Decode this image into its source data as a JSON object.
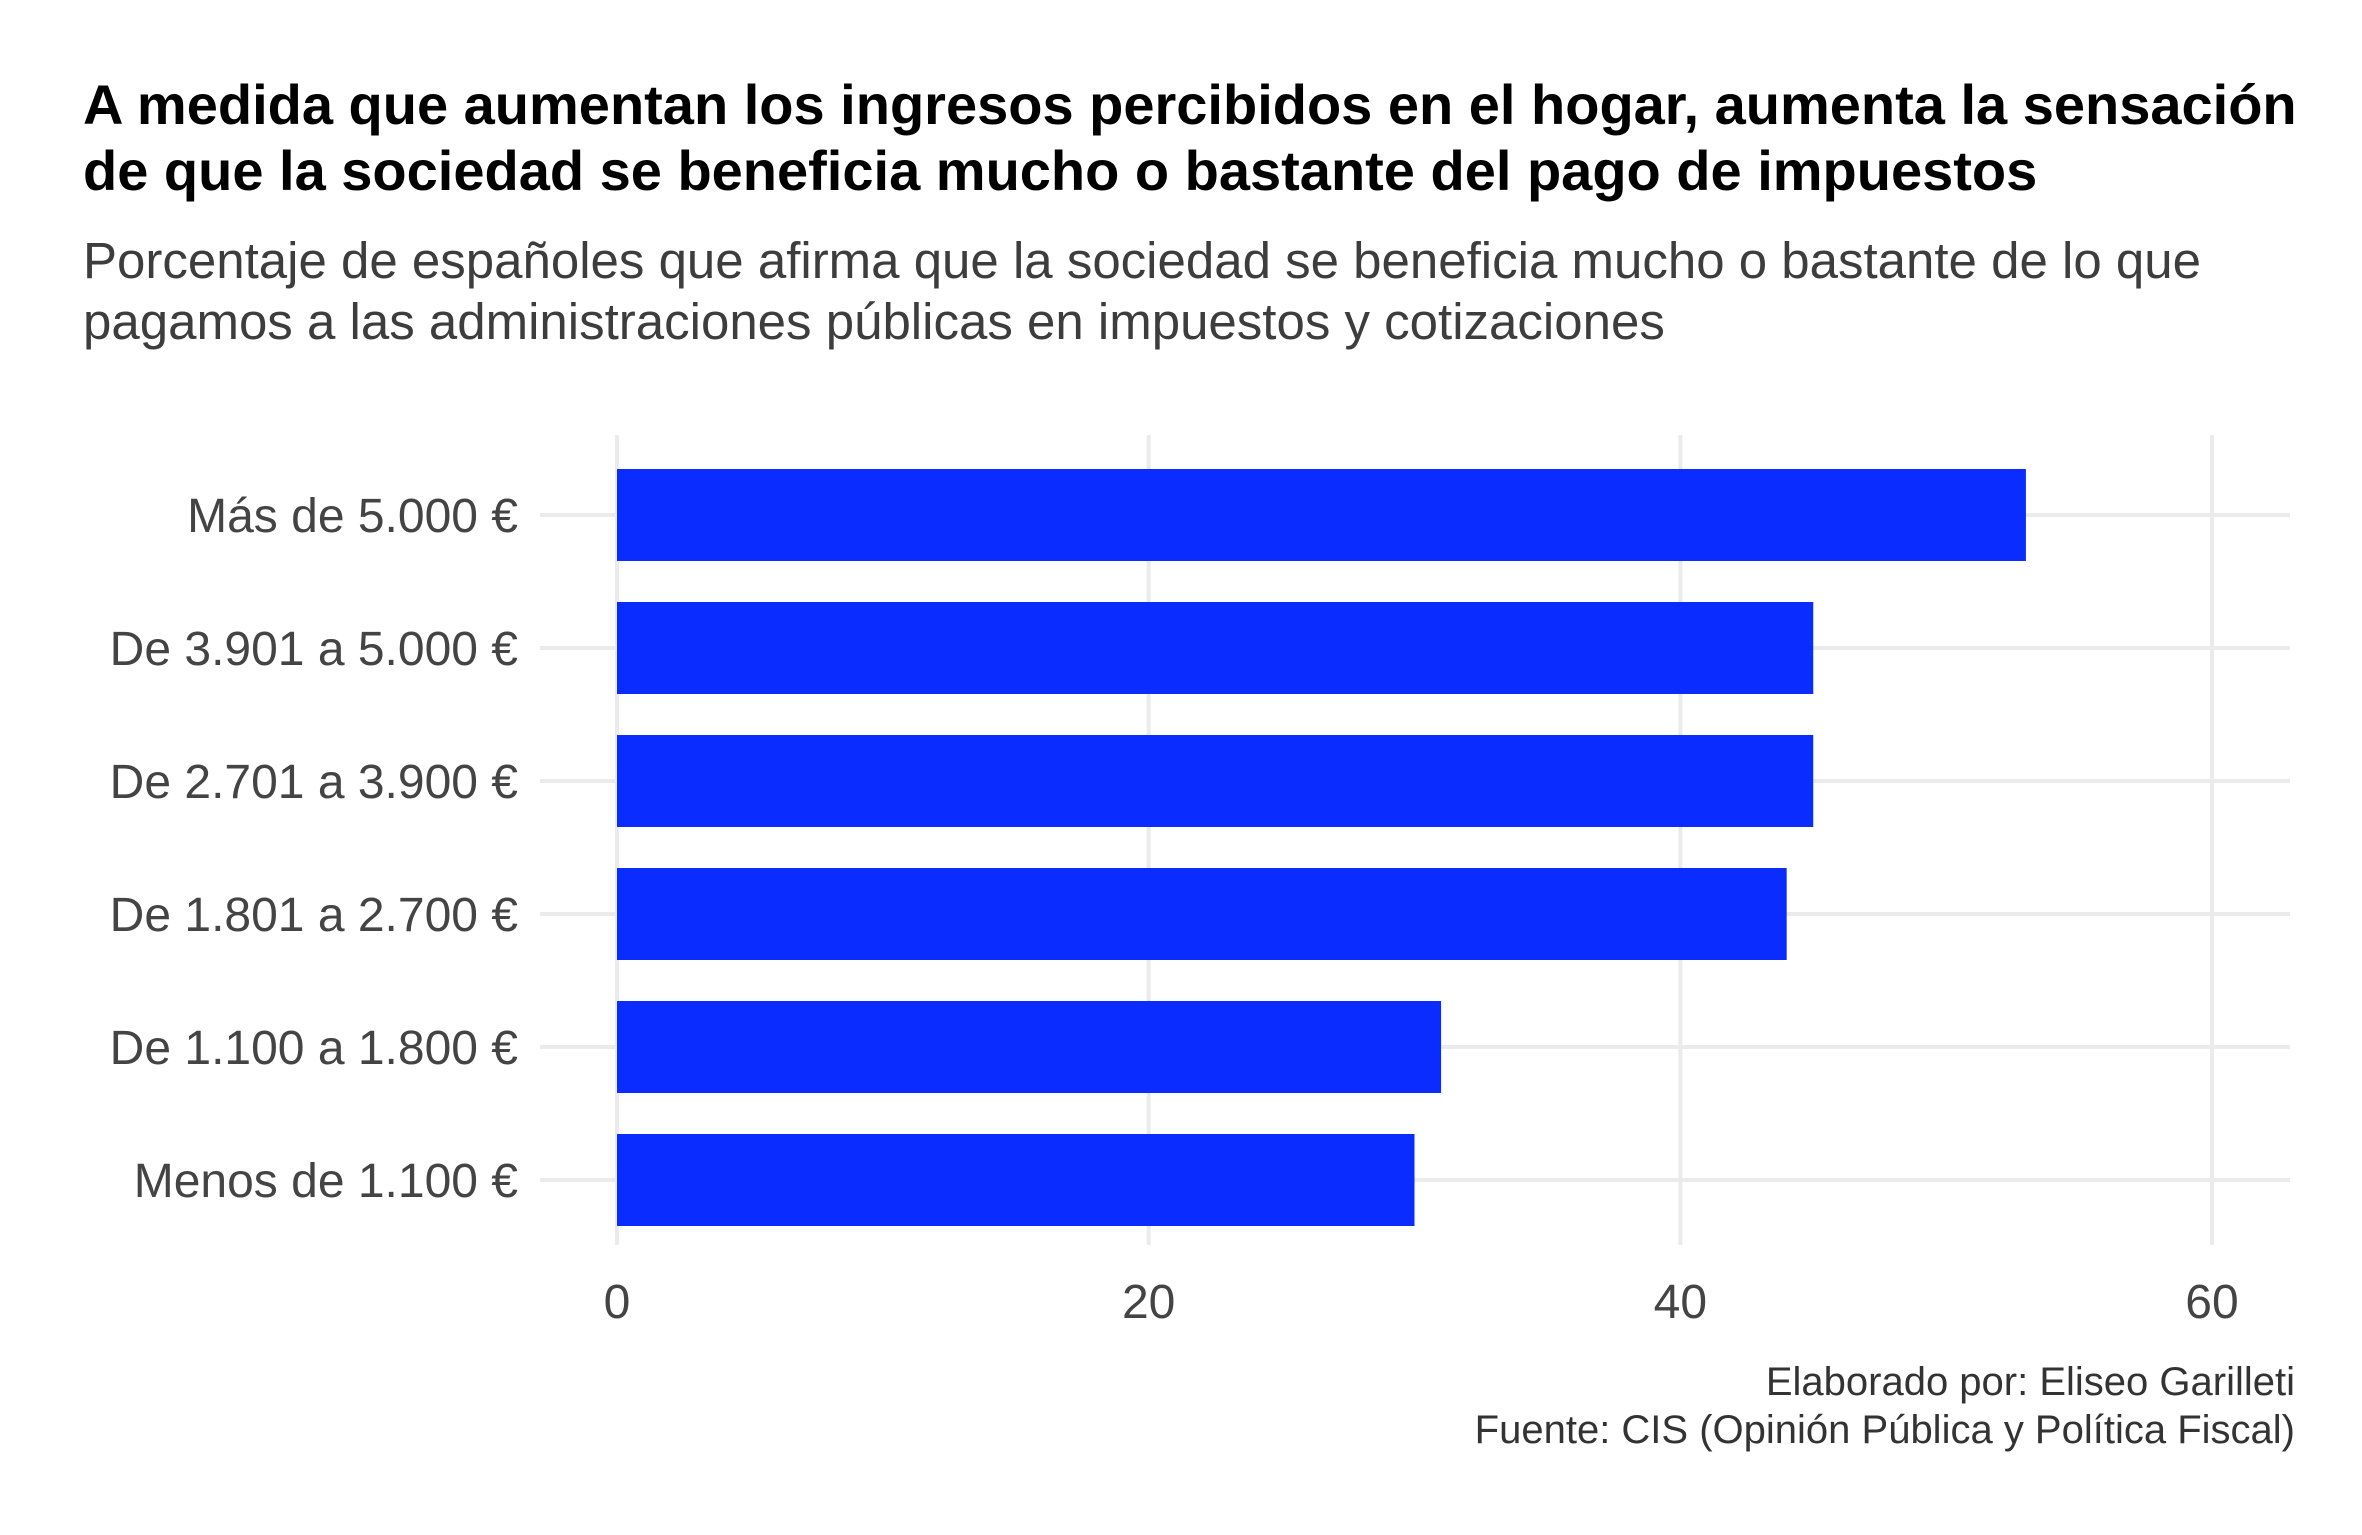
{
  "title": "A medida que aumentan los ingresos percibidos en el hogar, aumenta la sensación de que la sociedad se beneficia mucho o bastante del pago de impuestos",
  "subtitle": "Porcentaje de españoles que afirma que la sociedad se beneficia mucho o bastante de lo que pagamos a las administraciones públicas en impuestos y cotizaciones",
  "caption": {
    "author": "Elaborado por: Eliseo Garilleti",
    "source": "Fuente: CIS (Opinión Pública y Política Fiscal)"
  },
  "chart_data": {
    "type": "bar",
    "orientation": "horizontal",
    "categories": [
      "Más de 5.000 €",
      "De 3.901 a 5.000 €",
      "De 2.701 a 3.900 €",
      "De 1.801 a 2.700 €",
      "De 1.100 a 1.800 €",
      "Menos de 1.100 €"
    ],
    "values": [
      53,
      45,
      45,
      44,
      31,
      30
    ],
    "xlim": [
      0,
      63
    ],
    "xticks": [
      0,
      20,
      40,
      60
    ],
    "xlabel": "",
    "ylabel": "",
    "grid": true,
    "bar_color": "#0a2cff",
    "grid_color": "#ebebeb"
  }
}
